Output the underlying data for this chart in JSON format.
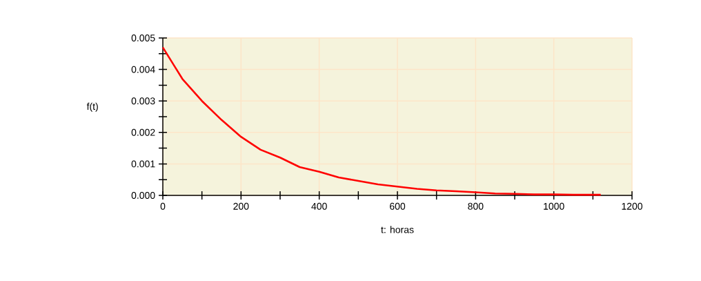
{
  "chart_data": {
    "type": "line",
    "xlabel": "t: horas",
    "ylabel": "f(t)",
    "x": [
      0,
      50,
      100,
      150,
      200,
      250,
      300,
      350,
      400,
      450,
      500,
      550,
      600,
      650,
      700,
      750,
      800,
      850,
      900,
      950,
      1000,
      1050,
      1120
    ],
    "series": [
      {
        "color": "#ff0000",
        "values": [
          0.0047,
          0.0037,
          0.003,
          0.0024,
          0.00186,
          0.00145,
          0.0012,
          0.0009,
          0.00075,
          0.00057,
          0.00046,
          0.00035,
          0.00028,
          0.00021,
          0.00016,
          0.00013,
          0.0001,
          6e-05,
          5e-05,
          3e-05,
          3e-05,
          2e-05,
          2e-05
        ]
      }
    ],
    "xlim": [
      0,
      1200
    ],
    "ylim": [
      0,
      0.005
    ],
    "xticks": [
      0,
      {
        "value": 100,
        "label": null
      },
      200,
      {
        "value": 300,
        "label": null
      },
      400,
      {
        "value": 500,
        "label": null
      },
      600,
      {
        "value": 700,
        "label": null
      },
      800,
      {
        "value": 900,
        "label": null
      },
      1000,
      {
        "value": 1100,
        "label": null
      },
      1200
    ],
    "yticks": [
      "0.000",
      {
        "value": 0.0005,
        "label": null
      },
      {
        "value": 0.001,
        "label": "0.001"
      },
      {
        "value": 0.0015,
        "label": null
      },
      {
        "value": 0.002,
        "label": "0.002"
      },
      {
        "value": 0.0025,
        "label": null
      },
      {
        "value": 0.003,
        "label": "0.003"
      },
      {
        "value": 0.0035,
        "label": null
      },
      {
        "value": 0.004,
        "label": "0.004"
      },
      {
        "value": 0.0045,
        "label": null
      },
      {
        "value": 0.005,
        "label": "0.005"
      }
    ],
    "grid": true,
    "marker": "none",
    "line_style": "solid"
  }
}
